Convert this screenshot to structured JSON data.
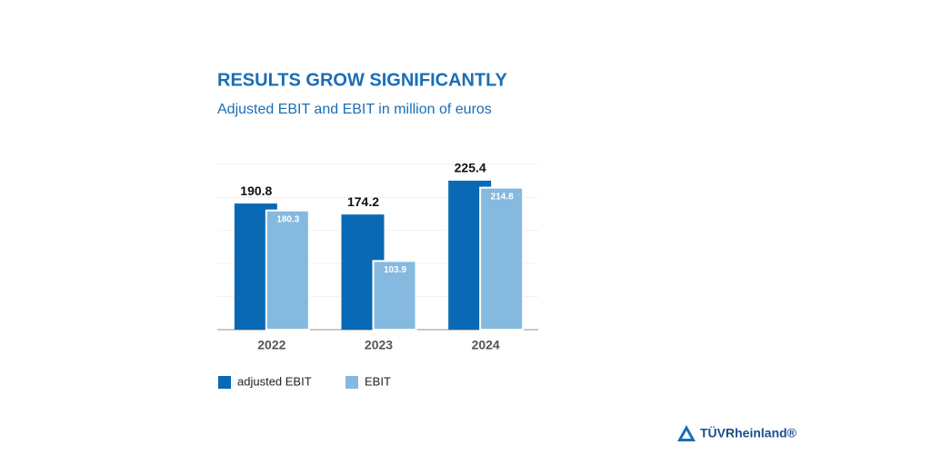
{
  "chart_data": {
    "type": "bar",
    "title": "RESULTS GROW SIGNIFICANTLY",
    "subtitle": "Adjusted EBIT and EBIT in million of euros",
    "categories": [
      "2022",
      "2023",
      "2024"
    ],
    "series": [
      {
        "name": "adjusted EBIT",
        "color": "#0a69b4",
        "values": [
          190.8,
          174.2,
          225.4
        ]
      },
      {
        "name": "EBIT",
        "color": "#86b9df",
        "values": [
          180.3,
          103.9,
          214.8
        ]
      }
    ],
    "ylim": [
      0,
      250
    ],
    "yticks": [
      0,
      50,
      100,
      150,
      200,
      250
    ],
    "grid": true,
    "logo": "TÜVRheinland®"
  }
}
